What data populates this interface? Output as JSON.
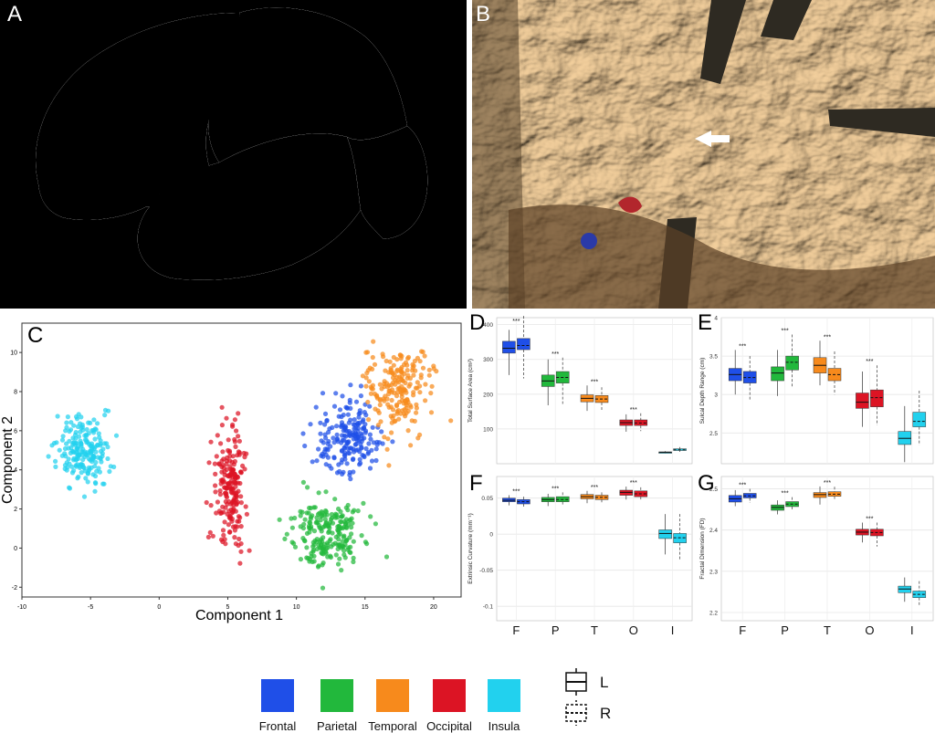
{
  "panels": {
    "A": "A",
    "B": "B",
    "C": "C",
    "D": "D",
    "E": "E",
    "F": "F",
    "G": "G"
  },
  "colors": {
    "Frontal": "#1f4fe8",
    "Parietal": "#22b83c",
    "Temporal": "#f78a1c",
    "Occipital": "#dc1424",
    "Insula": "#22d1ee"
  },
  "legend": {
    "regions": [
      "Frontal",
      "Parietal",
      "Temporal",
      "Occipital",
      "Insula"
    ],
    "hemispheres": [
      {
        "label": "L",
        "style": "solid"
      },
      {
        "label": "R",
        "style": "dashed"
      }
    ]
  },
  "chart_data": [
    {
      "panel": "C",
      "type": "scatter",
      "xlabel": "Component 1",
      "ylabel": "Component 2",
      "xlim": [
        -10,
        22
      ],
      "ylim": [
        -2.5,
        11.5
      ],
      "xticks": [
        "-10",
        "-5",
        "0",
        "5",
        "10",
        "15",
        "20"
      ],
      "yticks": [
        "-2",
        "0",
        "2",
        "4",
        "6",
        "8",
        "10"
      ],
      "clusters": [
        {
          "name": "Insula",
          "center": [
            -5.5,
            5.0
          ],
          "spread": [
            1.7,
            1.6
          ],
          "count": 200
        },
        {
          "name": "Occipital",
          "center": [
            5.2,
            3.0
          ],
          "spread": [
            1.0,
            2.6
          ],
          "count": 200
        },
        {
          "name": "Parietal",
          "center": [
            12.2,
            0.8
          ],
          "spread": [
            2.2,
            1.7
          ],
          "count": 220
        },
        {
          "name": "Frontal",
          "center": [
            13.8,
            5.6
          ],
          "spread": [
            2.2,
            1.8
          ],
          "count": 200
        },
        {
          "name": "Temporal",
          "center": [
            17.3,
            8.0
          ],
          "spread": [
            2.2,
            2.2
          ],
          "count": 200
        }
      ]
    },
    {
      "panel": "D",
      "type": "box",
      "ylabel": "Total Surface Area (cm²)",
      "ylim": [
        0,
        420
      ],
      "yticks": [
        100,
        200,
        300,
        400
      ],
      "significance": "***",
      "categories": [
        "F",
        "P",
        "T",
        "O",
        "I"
      ],
      "series": [
        {
          "name": "L",
          "boxes": [
            [
              255,
              318,
              332,
              352,
              385
            ],
            [
              168,
              222,
              238,
              255,
              300
            ],
            [
              152,
              178,
              188,
              198,
              225
            ],
            [
              92,
              110,
              118,
              126,
              142
            ],
            [
              30,
              32,
              33,
              34,
              36
            ]
          ]
        },
        {
          "name": "R",
          "boxes": [
            [
              245,
              328,
              340,
              360,
              425
            ],
            [
              172,
              232,
              248,
              265,
              305
            ],
            [
              155,
              176,
              186,
              196,
              220
            ],
            [
              94,
              110,
              117,
              126,
              145
            ],
            [
              34,
              38,
              40,
              43,
              48
            ]
          ]
        }
      ]
    },
    {
      "panel": "E",
      "type": "box",
      "ylabel": "Sulcal Depth Range (cm)",
      "ylim": [
        2.1,
        4.0
      ],
      "yticks": [
        2.5,
        3,
        3.5,
        4
      ],
      "significance": "***",
      "categories": [
        "F",
        "P",
        "T",
        "O",
        "I"
      ],
      "series": [
        {
          "name": "L",
          "boxes": [
            [
              3.0,
              3.18,
              3.26,
              3.34,
              3.58
            ],
            [
              2.98,
              3.18,
              3.28,
              3.36,
              3.58
            ],
            [
              3.12,
              3.28,
              3.38,
              3.48,
              3.7
            ],
            [
              2.58,
              2.82,
              2.9,
              3.02,
              3.3
            ],
            [
              2.12,
              2.35,
              2.43,
              2.52,
              2.85
            ]
          ]
        },
        {
          "name": "R",
          "boxes": [
            [
              2.92,
              3.15,
              3.22,
              3.3,
              3.5
            ],
            [
              3.1,
              3.32,
              3.42,
              3.5,
              3.78
            ],
            [
              3.0,
              3.18,
              3.26,
              3.34,
              3.56
            ],
            [
              2.6,
              2.84,
              2.96,
              3.06,
              3.38
            ],
            [
              2.34,
              2.58,
              2.65,
              2.77,
              3.05
            ]
          ]
        }
      ]
    },
    {
      "panel": "F",
      "type": "box",
      "ylabel": "Extrinsic Curvature (mm⁻¹)",
      "ylim": [
        -0.12,
        0.08
      ],
      "yticks": [
        -0.1,
        -0.05,
        0,
        0.05
      ],
      "significance": "***",
      "categories": [
        "F",
        "P",
        "T",
        "O",
        "I"
      ],
      "series": [
        {
          "name": "L",
          "boxes": [
            [
              0.04,
              0.045,
              0.047,
              0.05,
              0.054
            ],
            [
              0.039,
              0.045,
              0.048,
              0.051,
              0.056
            ],
            [
              0.043,
              0.049,
              0.052,
              0.055,
              0.06
            ],
            [
              0.048,
              0.054,
              0.058,
              0.061,
              0.066
            ],
            [
              -0.028,
              -0.006,
              0.001,
              0.006,
              0.028
            ]
          ]
        },
        {
          "name": "R",
          "boxes": [
            [
              0.036,
              0.042,
              0.045,
              0.048,
              0.052
            ],
            [
              0.04,
              0.045,
              0.048,
              0.052,
              0.058
            ],
            [
              0.043,
              0.048,
              0.051,
              0.054,
              0.058
            ],
            [
              0.046,
              0.052,
              0.056,
              0.06,
              0.065
            ],
            [
              -0.035,
              -0.012,
              -0.005,
              0.001,
              0.028
            ]
          ]
        }
      ]
    },
    {
      "panel": "G",
      "type": "box",
      "ylabel": "Fractal Dimension (FD)",
      "ylim": [
        2.18,
        2.53
      ],
      "yticks": [
        2.2,
        2.3,
        2.4,
        2.5
      ],
      "significance": "***",
      "categories": [
        "F",
        "P",
        "T",
        "O",
        "I"
      ],
      "series": [
        {
          "name": "L",
          "boxes": [
            [
              2.458,
              2.468,
              2.476,
              2.484,
              2.497
            ],
            [
              2.438,
              2.448,
              2.455,
              2.461,
              2.472
            ],
            [
              2.462,
              2.479,
              2.486,
              2.491,
              2.506
            ],
            [
              2.37,
              2.388,
              2.395,
              2.402,
              2.418
            ],
            [
              2.226,
              2.248,
              2.257,
              2.264,
              2.285
            ]
          ]
        },
        {
          "name": "R",
          "boxes": [
            [
              2.466,
              2.478,
              2.483,
              2.489,
              2.5
            ],
            [
              2.448,
              2.457,
              2.463,
              2.469,
              2.48
            ],
            [
              2.472,
              2.482,
              2.487,
              2.493,
              2.505
            ],
            [
              2.36,
              2.386,
              2.394,
              2.402,
              2.418
            ],
            [
              2.215,
              2.236,
              2.244,
              2.252,
              2.276
            ]
          ]
        }
      ]
    }
  ]
}
